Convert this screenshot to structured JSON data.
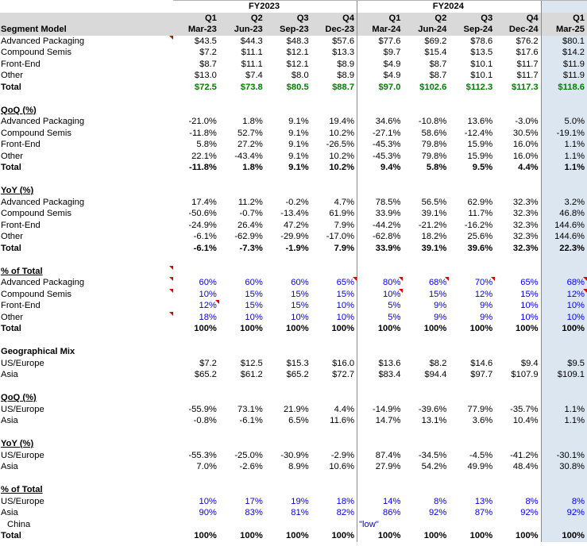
{
  "fiscal_years": [
    "FY2023",
    "FY2024"
  ],
  "quarters": [
    "Q1",
    "Q2",
    "Q3",
    "Q4",
    "Q1",
    "Q2",
    "Q3",
    "Q4",
    "Q1"
  ],
  "periods": [
    "Mar-23",
    "Jun-23",
    "Sep-23",
    "Dec-23",
    "Mar-24",
    "Jun-24",
    "Sep-24",
    "Dec-24",
    "Mar-25"
  ],
  "header_label": "Segment Model",
  "sections": [
    {
      "rows": [
        {
          "label": "Advanced Packaging",
          "values": [
            "$43.5",
            "$44.3",
            "$48.3",
            "$57.6",
            "$77.6",
            "$69.2",
            "$78.6",
            "$76.2",
            "$80.1"
          ],
          "flag": true
        },
        {
          "label": "Compound Semis",
          "values": [
            "$7.2",
            "$11.1",
            "$12.1",
            "$13.3",
            "$9.7",
            "$15.4",
            "$13.5",
            "$17.6",
            "$14.2"
          ]
        },
        {
          "label": "Front-End",
          "values": [
            "$8.7",
            "$11.1",
            "$12.1",
            "$8.9",
            "$4.9",
            "$8.7",
            "$10.1",
            "$11.7",
            "$11.9"
          ]
        },
        {
          "label": "Other",
          "values": [
            "$13.0",
            "$7.4",
            "$8.0",
            "$8.9",
            "$4.9",
            "$8.7",
            "$10.1",
            "$11.7",
            "$11.9"
          ]
        },
        {
          "label": "Total",
          "values": [
            "$72.5",
            "$73.8",
            "$80.5",
            "$88.7",
            "$97.0",
            "$102.6",
            "$112.3",
            "$117.3",
            "$118.6"
          ],
          "total": true,
          "green": true
        }
      ]
    },
    {
      "title": "QoQ (%)",
      "rows": [
        {
          "label": "Advanced Packaging",
          "values": [
            "-21.0%",
            "1.8%",
            "9.1%",
            "19.4%",
            "34.6%",
            "-10.8%",
            "13.6%",
            "-3.0%",
            "5.0%"
          ]
        },
        {
          "label": "Compound Semis",
          "values": [
            "-11.8%",
            "52.7%",
            "9.1%",
            "10.2%",
            "-27.1%",
            "58.6%",
            "-12.4%",
            "30.5%",
            "-19.1%"
          ]
        },
        {
          "label": "Front-End",
          "values": [
            "5.8%",
            "27.2%",
            "9.1%",
            "-26.5%",
            "-45.3%",
            "79.8%",
            "15.9%",
            "16.0%",
            "1.1%"
          ]
        },
        {
          "label": "Other",
          "values": [
            "22.1%",
            "-43.4%",
            "9.1%",
            "10.2%",
            "-45.3%",
            "79.8%",
            "15.9%",
            "16.0%",
            "1.1%"
          ]
        },
        {
          "label": "Total",
          "values": [
            "-11.8%",
            "1.8%",
            "9.1%",
            "10.2%",
            "9.4%",
            "5.8%",
            "9.5%",
            "4.4%",
            "1.1%"
          ],
          "total": true
        }
      ]
    },
    {
      "title": "YoY (%)",
      "rows": [
        {
          "label": "Advanced Packaging",
          "values": [
            "17.4%",
            "11.2%",
            "-0.2%",
            "4.7%",
            "78.5%",
            "56.5%",
            "62.9%",
            "32.3%",
            "3.2%"
          ]
        },
        {
          "label": "Compound Semis",
          "values": [
            "-50.6%",
            "-0.7%",
            "-13.4%",
            "61.9%",
            "33.9%",
            "39.1%",
            "11.7%",
            "32.3%",
            "46.8%"
          ]
        },
        {
          "label": "Front-End",
          "values": [
            "-24.9%",
            "26.4%",
            "47.2%",
            "7.9%",
            "-44.2%",
            "-21.2%",
            "-16.2%",
            "32.3%",
            "144.6%"
          ]
        },
        {
          "label": "Other",
          "values": [
            "-6.1%",
            "-62.9%",
            "-29.9%",
            "-17.0%",
            "-62.8%",
            "18.2%",
            "25.6%",
            "32.3%",
            "144.6%"
          ]
        },
        {
          "label": "Total",
          "values": [
            "-6.1%",
            "-7.3%",
            "-1.9%",
            "7.9%",
            "33.9%",
            "39.1%",
            "39.6%",
            "32.3%",
            "22.3%"
          ],
          "total": true
        }
      ]
    },
    {
      "title": "% of Total",
      "title_flag": true,
      "rows": [
        {
          "label": "Advanced Packaging",
          "values": [
            "60%",
            "60%",
            "60%",
            "65%",
            "80%",
            "68%",
            "70%",
            "65%",
            "68%"
          ],
          "blue": true,
          "flag": true,
          "cell_flags": [
            3,
            4,
            5,
            6,
            8
          ]
        },
        {
          "label": "Compound Semis",
          "values": [
            "10%",
            "15%",
            "15%",
            "15%",
            "10%",
            "15%",
            "12%",
            "15%",
            "12%"
          ],
          "blue": true,
          "flag": true,
          "cell_flags": [
            4,
            8
          ]
        },
        {
          "label": "Front-End",
          "values": [
            "12%",
            "15%",
            "15%",
            "10%",
            "5%",
            "9%",
            "9%",
            "10%",
            "10%"
          ],
          "blue": true,
          "cell_flags": [
            0
          ]
        },
        {
          "label": "Other",
          "values": [
            "18%",
            "10%",
            "10%",
            "10%",
            "5%",
            "9%",
            "9%",
            "10%",
            "10%"
          ],
          "blue": true,
          "flag": true
        },
        {
          "label": "Total",
          "values": [
            "100%",
            "100%",
            "100%",
            "100%",
            "100%",
            "100%",
            "100%",
            "100%",
            "100%"
          ],
          "total": true
        }
      ]
    },
    {
      "title": "Geographical Mix",
      "title_plain": true,
      "rows": [
        {
          "label": "US/Europe",
          "values": [
            "$7.2",
            "$12.5",
            "$15.3",
            "$16.0",
            "$13.6",
            "$8.2",
            "$14.6",
            "$9.4",
            "$9.5"
          ]
        },
        {
          "label": "Asia",
          "values": [
            "$65.2",
            "$61.2",
            "$65.2",
            "$72.7",
            "$83.4",
            "$94.4",
            "$97.7",
            "$107.9",
            "$109.1"
          ]
        }
      ]
    },
    {
      "title": "QoQ (%)",
      "rows": [
        {
          "label": "US/Europe",
          "values": [
            "-55.9%",
            "73.1%",
            "21.9%",
            "4.4%",
            "-14.9%",
            "-39.6%",
            "77.9%",
            "-35.7%",
            "1.1%"
          ]
        },
        {
          "label": "Asia",
          "values": [
            "-0.8%",
            "-6.1%",
            "6.5%",
            "11.6%",
            "14.7%",
            "13.1%",
            "3.6%",
            "10.4%",
            "1.1%"
          ]
        }
      ]
    },
    {
      "title": "YoY (%)",
      "rows": [
        {
          "label": "US/Europe",
          "values": [
            "-55.3%",
            "-25.0%",
            "-30.9%",
            "-2.9%",
            "87.4%",
            "-34.5%",
            "-4.5%",
            "-41.2%",
            "-30.1%"
          ]
        },
        {
          "label": "Asia",
          "values": [
            "7.0%",
            "-2.6%",
            "8.9%",
            "10.6%",
            "27.9%",
            "54.2%",
            "49.9%",
            "48.4%",
            "30.8%"
          ]
        }
      ]
    },
    {
      "title": "% of Total",
      "rows": [
        {
          "label": "US/Europe",
          "values": [
            "10%",
            "17%",
            "19%",
            "18%",
            "14%",
            "8%",
            "13%",
            "8%",
            "8%"
          ],
          "blue": true
        },
        {
          "label": "Asia",
          "values": [
            "90%",
            "83%",
            "81%",
            "82%",
            "86%",
            "92%",
            "87%",
            "92%",
            "92%"
          ],
          "blue": true
        },
        {
          "label": "China",
          "values": [
            "",
            "",
            "",
            "",
            "\"low\"",
            "",
            "",
            "",
            ""
          ],
          "indent": true,
          "note": true
        },
        {
          "label": "Total",
          "values": [
            "100%",
            "100%",
            "100%",
            "100%",
            "100%",
            "100%",
            "100%",
            "100%",
            "100%"
          ],
          "total": true
        }
      ]
    }
  ],
  "colors": {
    "header_bg": "#d9d9d9",
    "highlight_col": "#dce6f1",
    "input_blue": "#0000ee",
    "total_green": "#008000",
    "comment_flag": "#e00000"
  }
}
